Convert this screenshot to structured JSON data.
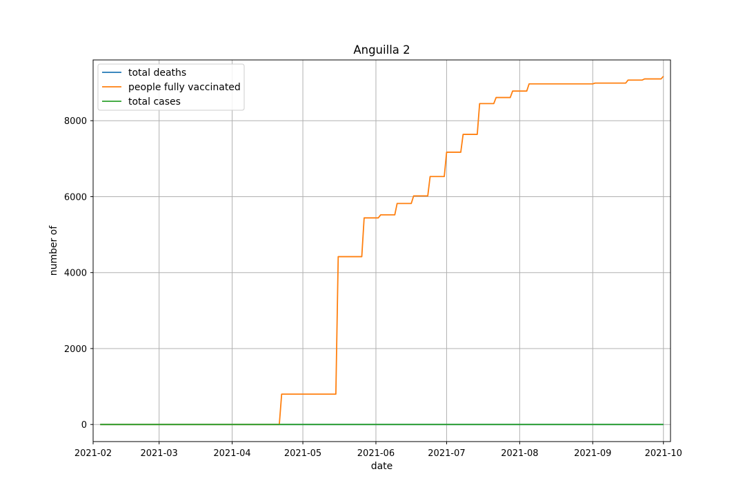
{
  "chart_data": {
    "type": "line",
    "title": "Anguilla 2",
    "xlabel": "date",
    "ylabel": "number of",
    "xlim": [
      "2021-02-01",
      "2021-10-04"
    ],
    "ylim": [
      -450,
      9600
    ],
    "x_ticks": [
      "2021-02",
      "2021-03",
      "2021-04",
      "2021-05",
      "2021-06",
      "2021-07",
      "2021-08",
      "2021-09",
      "2021-10"
    ],
    "y_ticks": [
      0,
      2000,
      4000,
      6000,
      8000
    ],
    "grid": true,
    "legend_position": "upper-left",
    "series": [
      {
        "name": "total deaths",
        "color": "#1f77b4",
        "points": [
          [
            "2021-02-04",
            0
          ],
          [
            "2021-10-01",
            0
          ]
        ]
      },
      {
        "name": "people fully vaccinated",
        "color": "#ff7f0e",
        "points": [
          [
            "2021-02-04",
            0
          ],
          [
            "2021-04-21",
            0
          ],
          [
            "2021-04-22",
            800
          ],
          [
            "2021-05-15",
            800
          ],
          [
            "2021-05-16",
            4420
          ],
          [
            "2021-05-26",
            4420
          ],
          [
            "2021-05-27",
            5440
          ],
          [
            "2021-06-02",
            5440
          ],
          [
            "2021-06-03",
            5520
          ],
          [
            "2021-06-09",
            5520
          ],
          [
            "2021-06-10",
            5820
          ],
          [
            "2021-06-16",
            5820
          ],
          [
            "2021-06-17",
            6020
          ],
          [
            "2021-06-23",
            6020
          ],
          [
            "2021-06-24",
            6530
          ],
          [
            "2021-06-30",
            6530
          ],
          [
            "2021-07-01",
            7170
          ],
          [
            "2021-07-07",
            7170
          ],
          [
            "2021-07-08",
            7640
          ],
          [
            "2021-07-14",
            7640
          ],
          [
            "2021-07-15",
            8450
          ],
          [
            "2021-07-21",
            8450
          ],
          [
            "2021-07-22",
            8610
          ],
          [
            "2021-07-28",
            8610
          ],
          [
            "2021-07-29",
            8780
          ],
          [
            "2021-08-04",
            8780
          ],
          [
            "2021-08-05",
            8970
          ],
          [
            "2021-09-01",
            8970
          ],
          [
            "2021-09-02",
            8990
          ],
          [
            "2021-09-15",
            8990
          ],
          [
            "2021-09-16",
            9070
          ],
          [
            "2021-09-22",
            9070
          ],
          [
            "2021-09-23",
            9100
          ],
          [
            "2021-09-30",
            9100
          ],
          [
            "2021-10-01",
            9170
          ]
        ]
      },
      {
        "name": "total cases",
        "color": "#2ca02c",
        "points": [
          [
            "2021-02-04",
            0
          ],
          [
            "2021-10-01",
            0
          ]
        ]
      }
    ]
  }
}
